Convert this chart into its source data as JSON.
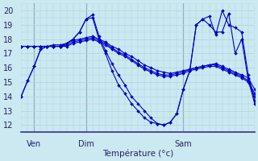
{
  "xlabel": "Température (°c)",
  "bg_color": "#cce8f0",
  "grid_color": "#aad4e0",
  "line_color": "#0000cc",
  "vline_color": "#556677",
  "ylim": [
    11.5,
    20.5
  ],
  "yticks": [
    12,
    13,
    14,
    15,
    16,
    17,
    18,
    19,
    20
  ],
  "xlim": [
    0,
    36
  ],
  "ven_x": 2,
  "dim_x": 10,
  "sam_x": 25,
  "xtick_positions": [
    2,
    10,
    25
  ],
  "xtick_labels": [
    "Ven",
    "Dim",
    "Sam"
  ],
  "series": [
    [
      14.0,
      15.1,
      16.1,
      17.3,
      17.5,
      17.5,
      17.5,
      17.7,
      18.0,
      18.5,
      19.4,
      19.7,
      18.2,
      17.2,
      16.3,
      15.5,
      14.8,
      14.0,
      13.5,
      13.0,
      12.5,
      12.1,
      12.0,
      12.2,
      12.8,
      14.5,
      15.8,
      19.0,
      19.4,
      19.6,
      18.3,
      20.0,
      19.0,
      18.8,
      18.5,
      15.5,
      13.7
    ],
    [
      14.0,
      15.1,
      16.1,
      17.3,
      17.5,
      17.5,
      17.5,
      17.7,
      18.0,
      18.5,
      19.4,
      19.5,
      18.0,
      17.0,
      15.8,
      14.8,
      14.2,
      13.5,
      13.0,
      12.5,
      12.2,
      12.1,
      12.0,
      12.2,
      12.8,
      14.5,
      15.8,
      19.0,
      19.4,
      19.0,
      18.5,
      18.5,
      19.8,
      17.0,
      18.0,
      15.2,
      13.5
    ],
    [
      17.5,
      17.5,
      17.5,
      17.5,
      17.5,
      17.6,
      17.6,
      17.7,
      17.9,
      18.0,
      18.1,
      18.2,
      18.0,
      17.8,
      17.5,
      17.3,
      17.0,
      16.8,
      16.5,
      16.2,
      16.0,
      15.8,
      15.7,
      15.6,
      15.7,
      15.8,
      15.9,
      16.0,
      16.1,
      16.2,
      16.3,
      16.1,
      15.9,
      15.7,
      15.5,
      15.3,
      14.5
    ],
    [
      17.5,
      17.5,
      17.5,
      17.5,
      17.5,
      17.5,
      17.5,
      17.6,
      17.8,
      17.9,
      18.0,
      18.1,
      17.9,
      17.7,
      17.4,
      17.1,
      16.9,
      16.6,
      16.3,
      16.0,
      15.8,
      15.6,
      15.5,
      15.5,
      15.6,
      15.7,
      15.9,
      16.0,
      16.1,
      16.2,
      16.2,
      16.0,
      15.8,
      15.6,
      15.4,
      15.1,
      14.2
    ],
    [
      17.5,
      17.5,
      17.5,
      17.5,
      17.5,
      17.5,
      17.5,
      17.5,
      17.7,
      17.8,
      17.9,
      18.0,
      17.8,
      17.6,
      17.3,
      17.0,
      16.8,
      16.5,
      16.2,
      15.9,
      15.7,
      15.5,
      15.4,
      15.4,
      15.5,
      15.6,
      15.8,
      15.9,
      16.0,
      16.1,
      16.1,
      15.9,
      15.7,
      15.5,
      15.3,
      15.0,
      14.0
    ]
  ]
}
